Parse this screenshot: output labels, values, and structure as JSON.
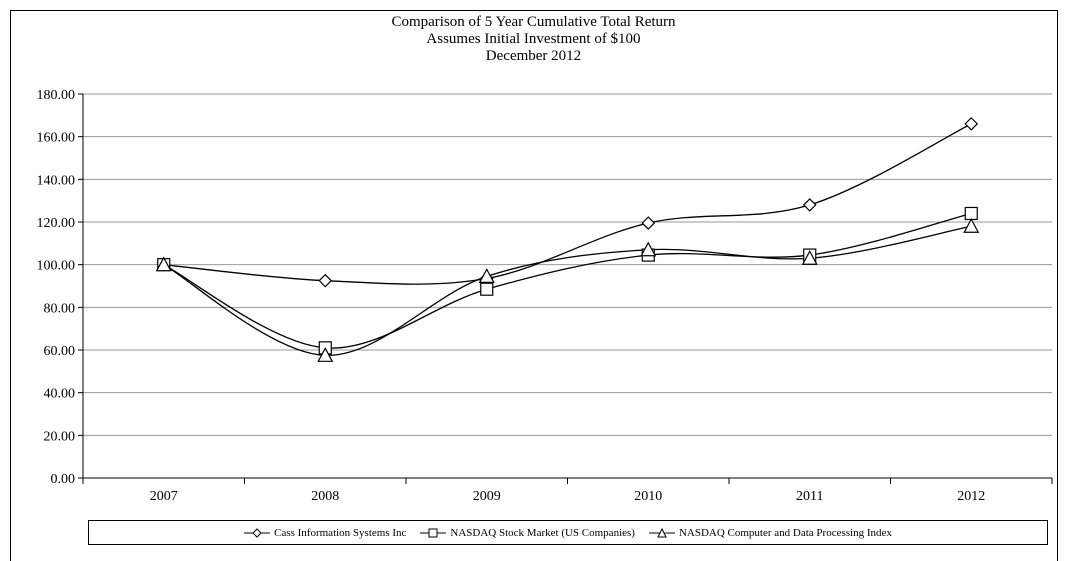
{
  "chart_data": {
    "type": "line",
    "title": "Comparison of 5 Year Cumulative Total Return",
    "subtitle": "Assumes Initial Investment of $100",
    "subtitle2": "December 2012",
    "xlabel": "",
    "ylabel": "",
    "categories": [
      "2007",
      "2008",
      "2009",
      "2010",
      "2011",
      "2012"
    ],
    "ylim": [
      0,
      180
    ],
    "yticks": [
      "0.00",
      "20.00",
      "40.00",
      "60.00",
      "80.00",
      "100.00",
      "120.00",
      "140.00",
      "160.00",
      "180.00"
    ],
    "grid": true,
    "legend_position": "bottom",
    "series": [
      {
        "name": "Cass Information Systems Inc",
        "marker": "diamond",
        "values": [
          100.0,
          92.5,
          93.5,
          119.5,
          128.0,
          166.0
        ]
      },
      {
        "name": "NASDAQ Stock Market (US Companies)",
        "marker": "square",
        "values": [
          100.0,
          61.0,
          88.5,
          104.5,
          104.5,
          124.0
        ]
      },
      {
        "name": "NASDAQ Computer and Data Processing Index",
        "marker": "triangle",
        "values": [
          100.0,
          57.5,
          94.5,
          107.0,
          103.0,
          118.0
        ]
      }
    ]
  }
}
